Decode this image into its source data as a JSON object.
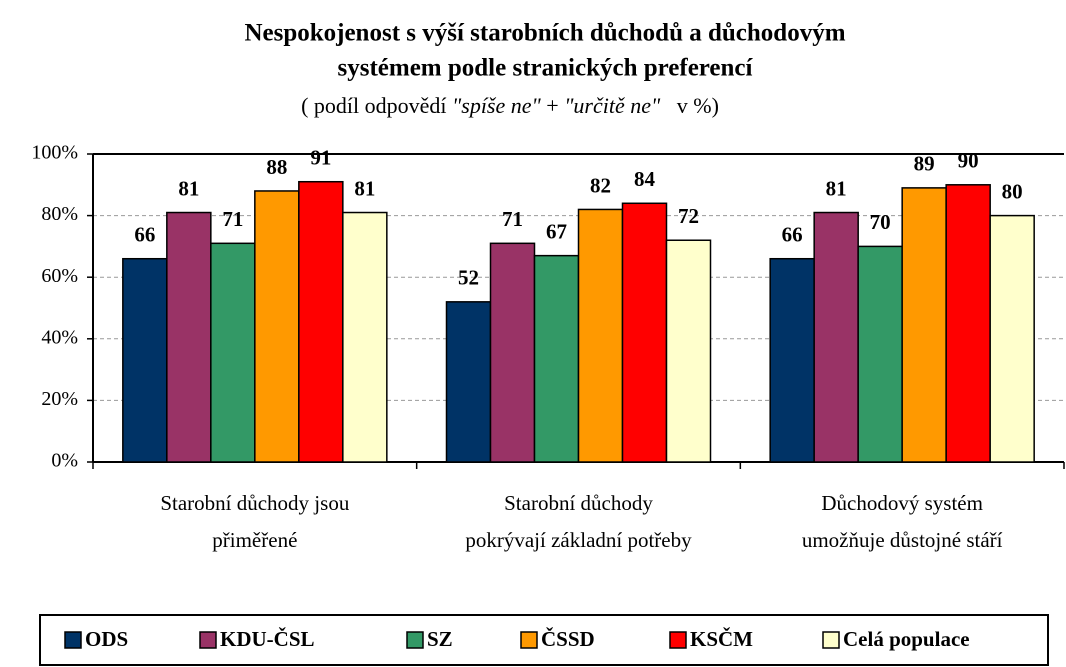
{
  "chart_data": {
    "type": "bar",
    "title": [
      "Nespokojenost s výší starobních důchodů a důchodovým",
      "systémem podle stranických preferencí"
    ],
    "subtitle": [
      "( podíl odpovědí ",
      "\"spíše ne\"",
      " + ",
      "\"určitě ne\"",
      "   v %)"
    ],
    "categories": [
      [
        "Starobní důchody jsou",
        "přiměřené"
      ],
      [
        "Starobní důchody",
        "pokrývají základní potřeby"
      ],
      [
        "Důchodový systém",
        "umožňuje důstojné stáří"
      ]
    ],
    "series": [
      {
        "name": "ODS",
        "color": "#003366",
        "values": [
          66,
          52,
          66
        ]
      },
      {
        "name": "KDU-ČSL",
        "color": "#993366",
        "values": [
          81,
          71,
          81
        ]
      },
      {
        "name": "SZ",
        "color": "#339966",
        "values": [
          71,
          67,
          70
        ]
      },
      {
        "name": "ČSSD",
        "color": "#ff9900",
        "values": [
          88,
          82,
          89
        ]
      },
      {
        "name": "KSČM",
        "color": "#ff0000",
        "values": [
          91,
          84,
          90
        ]
      },
      {
        "name": "Celá populace",
        "color": "#ffffcc",
        "values": [
          81,
          72,
          80
        ]
      }
    ],
    "ylim": [
      0,
      100
    ],
    "yticks": [
      {
        "value": 0,
        "label": "0%"
      },
      {
        "value": 20,
        "label": "20%"
      },
      {
        "value": 40,
        "label": "40%"
      },
      {
        "value": 60,
        "label": "60%"
      },
      {
        "value": 80,
        "label": "80%"
      },
      {
        "value": 100,
        "label": "100%"
      }
    ],
    "grid": true,
    "legend": "bottom"
  }
}
